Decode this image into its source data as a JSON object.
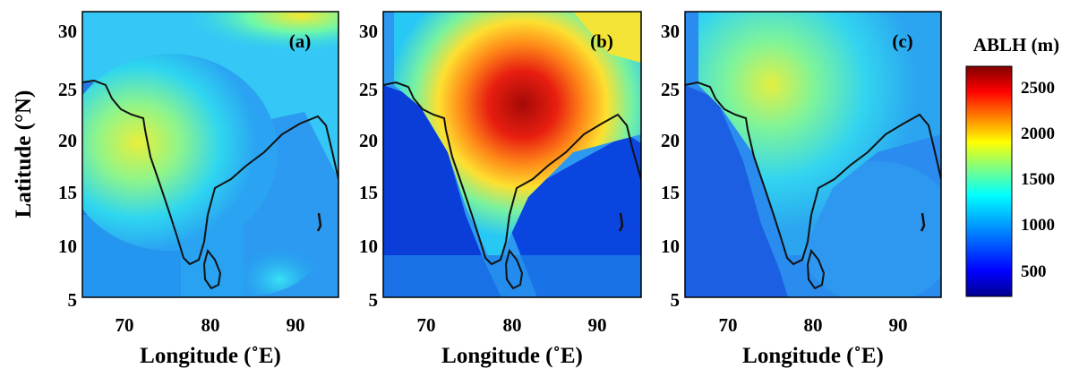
{
  "figure": {
    "ylabel": "Latitude (°N)",
    "xlabel": "Longitude (˚E)",
    "lat_ticks": [
      "30",
      "25",
      "20",
      "15",
      "10",
      "5"
    ],
    "lon_ticks": [
      "70",
      "80",
      "90"
    ],
    "panels": [
      {
        "label": "(a)",
        "level": "moderate"
      },
      {
        "label": "(b)",
        "level": "high"
      },
      {
        "label": "(c)",
        "level": "low"
      }
    ]
  },
  "colorbar": {
    "title": "ABLH (m)",
    "ticks": [
      "2500",
      "2000",
      "1500",
      "1000",
      "500"
    ],
    "range": [
      250,
      2750
    ],
    "colormap": [
      "#00008f",
      "#0000ff",
      "#0080ff",
      "#00ffff",
      "#80ff80",
      "#ffff00",
      "#ff8000",
      "#ff0000",
      "#800000"
    ]
  }
}
